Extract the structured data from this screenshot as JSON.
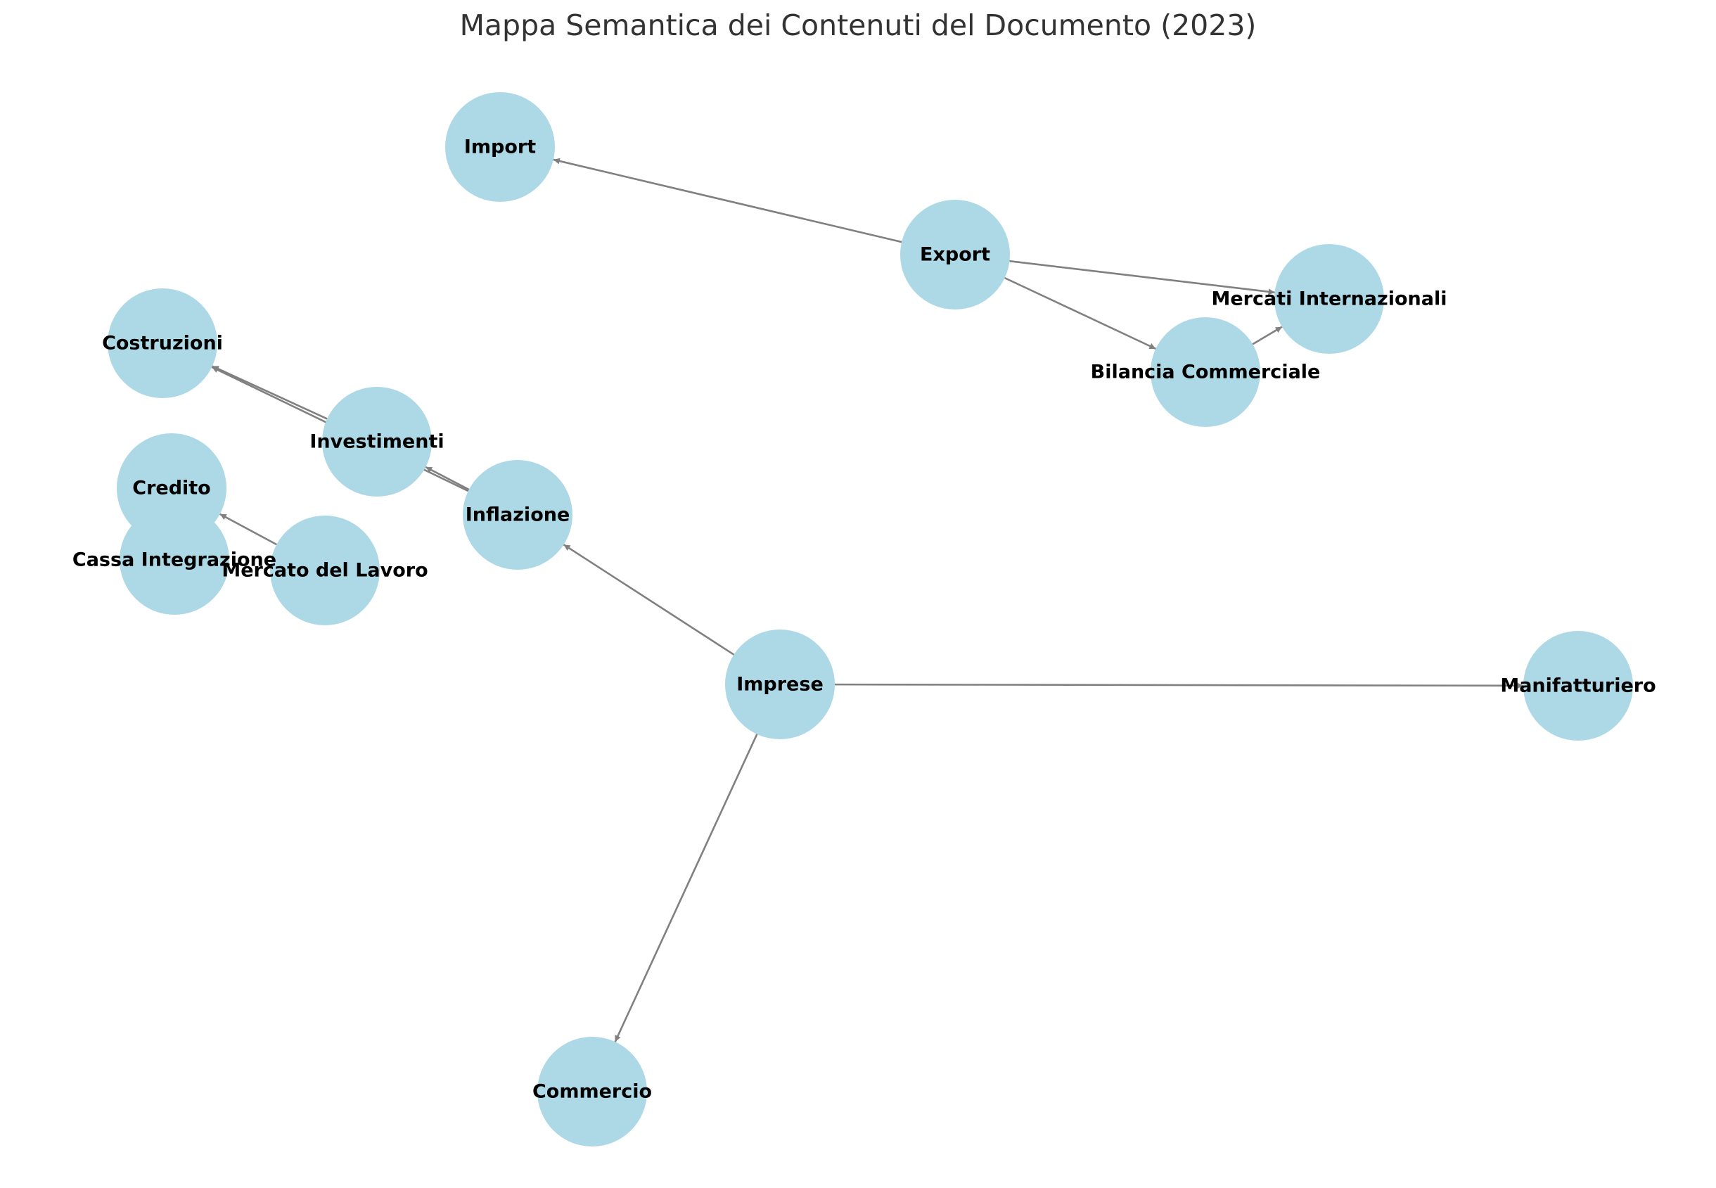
{
  "title": "Mappa Semantica dei Contenuti del Documento (2023)",
  "colors": {
    "node": "#add8e6",
    "edge": "#808080",
    "label": "#000000",
    "title": "#333333"
  },
  "nodes": [
    {
      "id": "import",
      "label": "Import"
    },
    {
      "id": "export",
      "label": "Export"
    },
    {
      "id": "mercati",
      "label": "Mercati Internazionali"
    },
    {
      "id": "bilancia",
      "label": "Bilancia Commerciale"
    },
    {
      "id": "costruzioni",
      "label": "Costruzioni"
    },
    {
      "id": "investimenti",
      "label": "Investimenti"
    },
    {
      "id": "credito",
      "label": "Credito"
    },
    {
      "id": "inflazione",
      "label": "Inflazione"
    },
    {
      "id": "cassa",
      "label": "Cassa Integrazione"
    },
    {
      "id": "lavoro",
      "label": "Mercato del Lavoro"
    },
    {
      "id": "imprese",
      "label": "Imprese"
    },
    {
      "id": "manifatturiero",
      "label": "Manifatturiero"
    },
    {
      "id": "commercio",
      "label": "Commercio"
    }
  ],
  "edges": [
    {
      "from": "export",
      "to": "import"
    },
    {
      "from": "export",
      "to": "mercati"
    },
    {
      "from": "export",
      "to": "bilancia"
    },
    {
      "from": "bilancia",
      "to": "mercati"
    },
    {
      "from": "investimenti",
      "to": "costruzioni"
    },
    {
      "from": "inflazione",
      "to": "costruzioni"
    },
    {
      "from": "inflazione",
      "to": "investimenti"
    },
    {
      "from": "lavoro",
      "to": "credito"
    },
    {
      "from": "imprese",
      "to": "inflazione"
    },
    {
      "from": "imprese",
      "to": "manifatturiero"
    },
    {
      "from": "imprese",
      "to": "commercio"
    }
  ]
}
